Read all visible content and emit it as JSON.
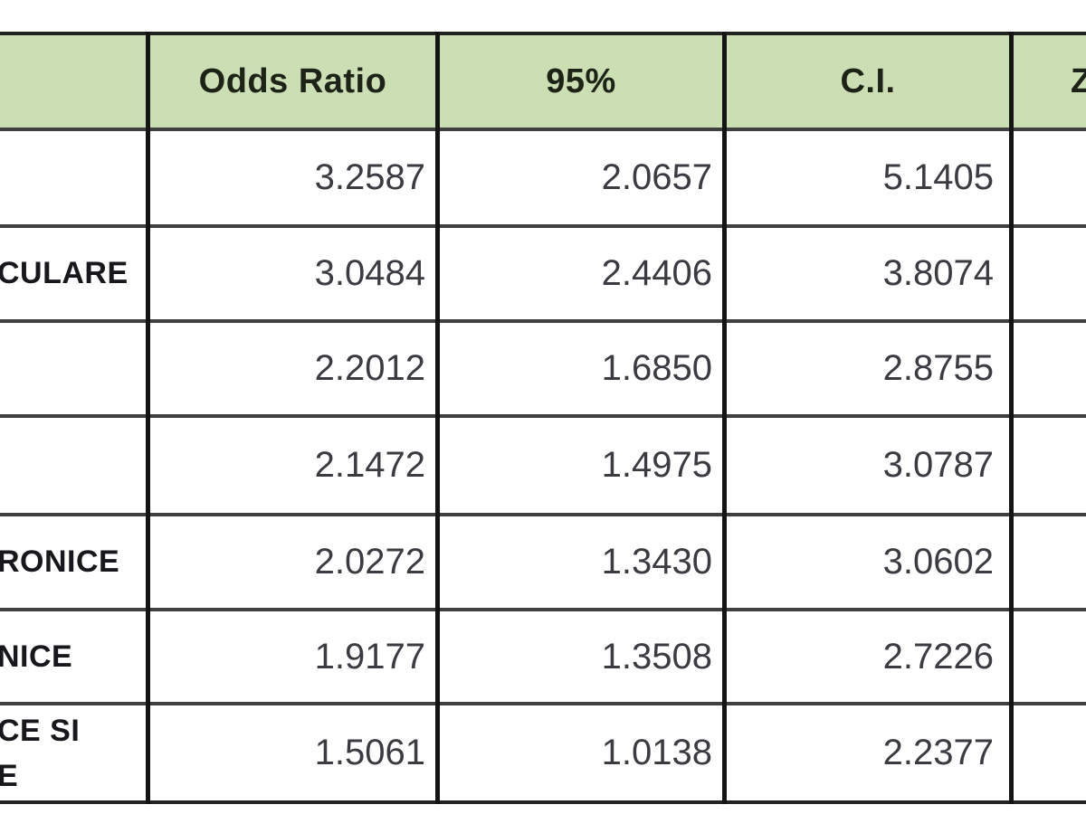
{
  "table": {
    "headers": {
      "col1": "Odds Ratio",
      "col2": "95%",
      "col3": "C.I.",
      "col4": "Z"
    },
    "rows": [
      {
        "label": "",
        "odds_ratio": "3.2587",
        "ci_lower": "2.0657",
        "ci_upper": "5.1405"
      },
      {
        "label": "CULARE",
        "odds_ratio": "3.0484",
        "ci_lower": "2.4406",
        "ci_upper": "3.8074"
      },
      {
        "label": "",
        "odds_ratio": "2.2012",
        "ci_lower": "1.6850",
        "ci_upper": "2.8755"
      },
      {
        "label": "",
        "odds_ratio": "2.1472",
        "ci_lower": "1.4975",
        "ci_upper": "3.0787"
      },
      {
        "label": "RONICE",
        "odds_ratio": "2.0272",
        "ci_lower": "1.3430",
        "ci_upper": "3.0602"
      },
      {
        "label": "NICE",
        "odds_ratio": "1.9177",
        "ci_lower": "1.3508",
        "ci_upper": "2.7226"
      },
      {
        "label_line1": "CE SI",
        "label_line2": "E",
        "odds_ratio": "1.5061",
        "ci_lower": "1.0138",
        "ci_upper": "2.2377"
      }
    ],
    "colors": {
      "header_bg": "#cbdeb4",
      "grid_vertical": "#141414",
      "grid_horizontal": "#3f3f3f",
      "number_text": "#3b3b42",
      "label_text": "#17171c",
      "header_text": "#1d2316"
    }
  },
  "chart_data": {
    "type": "table",
    "title": "",
    "columns": [
      "Odds Ratio",
      "95%",
      "C.I.",
      "Z"
    ],
    "row_labels": [
      "",
      "CULARE",
      "",
      "",
      "RONICE",
      "NICE",
      "CE SI E"
    ],
    "odds_ratio": [
      3.2587,
      3.0484,
      2.2012,
      2.1472,
      2.0272,
      1.9177,
      1.5061
    ],
    "ci_lower": [
      2.0657,
      2.4406,
      1.685,
      1.4975,
      1.343,
      1.3508,
      1.0138
    ],
    "ci_upper": [
      5.1405,
      3.8074,
      2.8755,
      3.0787,
      3.0602,
      2.7226,
      2.2377
    ]
  }
}
